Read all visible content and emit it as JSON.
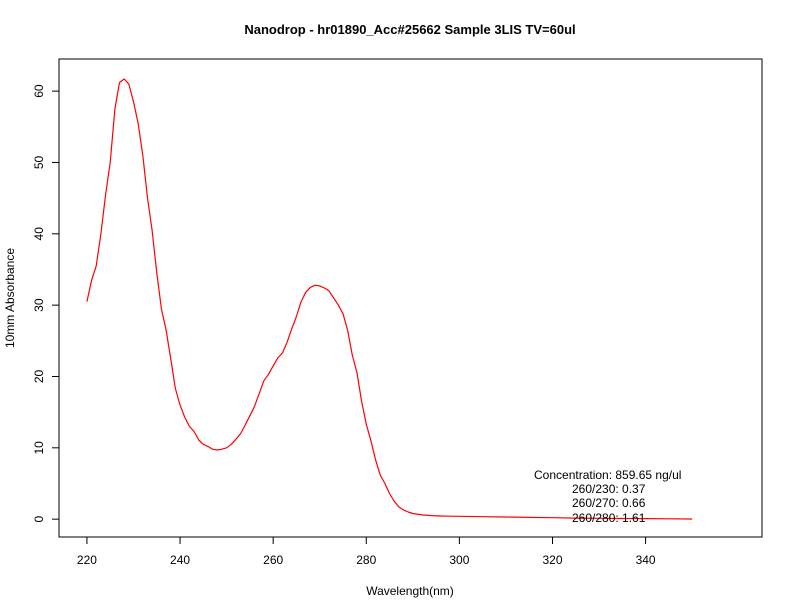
{
  "chart_data": {
    "type": "line",
    "title": "Nanodrop - hr01890_Acc#25662 Sample 3LIS  TV=60ul",
    "xlabel": "Wavelength(nm)",
    "ylabel": "10mm Absorbance",
    "xlim": [
      214,
      365
    ],
    "ylim": [
      -2.5,
      64.5
    ],
    "x_ticks": [
      220,
      240,
      260,
      280,
      300,
      320,
      340
    ],
    "y_ticks": [
      0,
      10,
      20,
      30,
      40,
      50,
      60
    ],
    "grid": false,
    "series": [
      {
        "color": "#ff0000",
        "x": [
          220,
          221,
          222,
          223,
          224,
          225,
          226,
          227,
          228,
          229,
          230,
          231,
          232,
          233,
          234,
          235,
          236,
          237,
          238,
          239,
          240,
          241,
          242,
          243,
          244,
          245,
          246,
          247,
          248,
          249,
          250,
          251,
          252,
          253,
          254,
          255,
          256,
          257,
          258,
          259,
          260,
          261,
          262,
          263,
          264,
          265,
          266,
          267,
          268,
          269,
          270,
          271,
          272,
          273,
          274,
          275,
          276,
          277,
          278,
          279,
          280,
          281,
          282,
          283,
          284,
          285,
          286,
          287,
          288,
          289,
          290,
          292,
          294,
          296,
          298,
          300,
          305,
          310,
          315,
          320,
          325,
          330,
          335,
          340,
          345,
          350
        ],
        "y": [
          30.5,
          33.5,
          35.5,
          40.0,
          45.5,
          50.0,
          57.5,
          61.2,
          61.7,
          61.0,
          58.5,
          55.5,
          51.0,
          45.0,
          40.5,
          34.5,
          29.5,
          26.5,
          22.5,
          18.3,
          16.0,
          14.3,
          13.0,
          12.3,
          11.1,
          10.5,
          10.2,
          9.8,
          9.7,
          9.8,
          10.0,
          10.5,
          11.2,
          12.0,
          13.2,
          14.5,
          15.8,
          17.6,
          19.4,
          20.3,
          21.5,
          22.6,
          23.3,
          24.8,
          26.7,
          28.4,
          30.5,
          31.8,
          32.5,
          32.8,
          32.7,
          32.4,
          32.0,
          31.0,
          30.0,
          28.8,
          26.5,
          23.0,
          20.5,
          16.5,
          13.3,
          11.0,
          8.3,
          6.2,
          5.0,
          3.6,
          2.5,
          1.7,
          1.3,
          1.0,
          0.8,
          0.6,
          0.5,
          0.45,
          0.42,
          0.4,
          0.35,
          0.3,
          0.25,
          0.2,
          0.15,
          0.12,
          0.1,
          0.08,
          0.05,
          0.02
        ]
      }
    ],
    "annotations": {
      "concentration": "Concentration: 859.65 ng/ul",
      "ratio_230": "260/230: 0.37",
      "ratio_270": "260/270: 0.66",
      "ratio_280": "260/280: 1.61"
    }
  }
}
